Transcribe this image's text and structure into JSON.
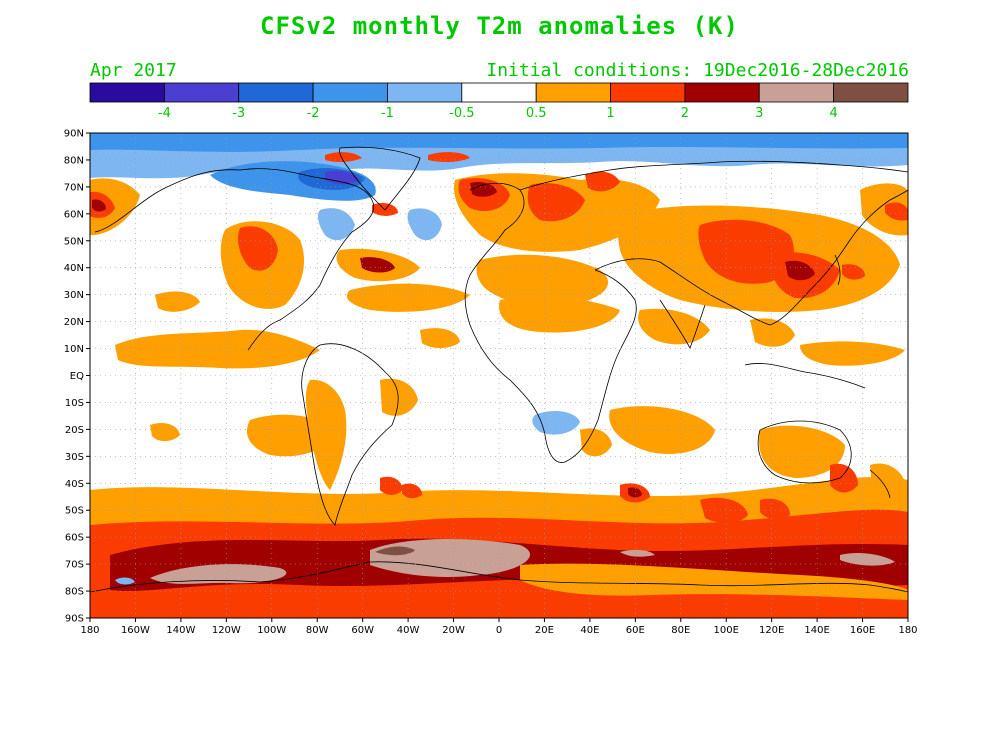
{
  "title": "CFSv2 monthly T2m anomalies (K)",
  "valid_month": "Apr 2017",
  "initial_conditions": "Initial conditions: 19Dec2016-28Dec2016",
  "colorbar": {
    "colors": [
      "#2a0b9e",
      "#4a3fd0",
      "#1f68d6",
      "#3d94ea",
      "#7eb6f2",
      "#ffffff",
      "#ffa000",
      "#fa3c00",
      "#a00000",
      "#c8a096",
      "#7e5044"
    ],
    "labels": [
      "-4",
      "-3",
      "-2",
      "-1",
      "-0.5",
      "0.5",
      "1",
      "2",
      "3",
      "4"
    ]
  },
  "axes": {
    "lat_labels": [
      "90N",
      "80N",
      "70N",
      "60N",
      "50N",
      "40N",
      "30N",
      "20N",
      "10N",
      "EQ",
      "10S",
      "20S",
      "30S",
      "40S",
      "50S",
      "60S",
      "70S",
      "80S",
      "90S"
    ],
    "lon_labels": [
      "180",
      "160W",
      "140W",
      "120W",
      "100W",
      "80W",
      "60W",
      "40W",
      "20W",
      "0",
      "20E",
      "40E",
      "60E",
      "80E",
      "100E",
      "120E",
      "140E",
      "160E",
      "180"
    ]
  }
}
